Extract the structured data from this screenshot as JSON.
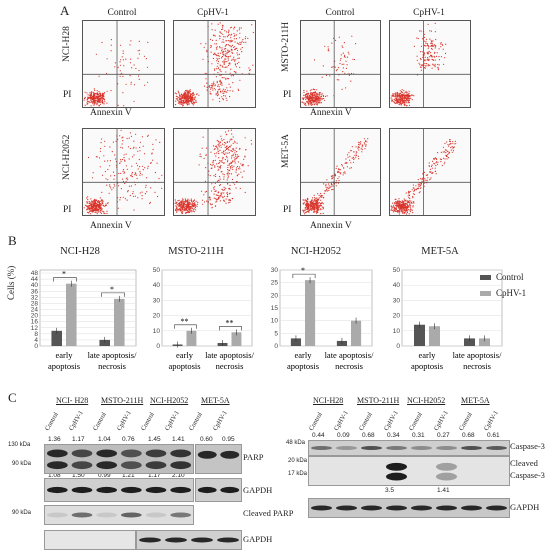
{
  "panels": {
    "a": "A",
    "b": "B",
    "c": "C"
  },
  "flow": {
    "col_titles": [
      "Control",
      "CpHV-1",
      "Control",
      "CpHV-1"
    ],
    "cell_lines": [
      "NCI-H28",
      "MSTO-211H",
      "NCI-H2052",
      "MET-5A"
    ],
    "y_axis": "PI",
    "x_axis": "Annexin V"
  },
  "legend": {
    "control": "Control",
    "cphv": "CpHV-1"
  },
  "colors": {
    "control": "#555555",
    "cphv": "#aaaaaa",
    "dots": "#d9342b"
  },
  "chart_data": [
    {
      "type": "bar",
      "title": "NCI-H28",
      "ylabel": "Cells (%)",
      "ylim": [
        0,
        50
      ],
      "yticks": [
        "0",
        "4",
        "8",
        "12",
        "16",
        "20",
        "24",
        "28",
        "32",
        "36",
        "40",
        "44",
        "48"
      ],
      "categories": [
        "early apoptosis",
        "late apoptosis/ necrosis"
      ],
      "series": [
        {
          "name": "Control",
          "values": [
            10,
            4
          ]
        },
        {
          "name": "CpHV-1",
          "values": [
            41,
            31
          ]
        }
      ],
      "annotations": [
        "*",
        "*"
      ]
    },
    {
      "type": "bar",
      "title": "MSTO-211H",
      "ylim": [
        0,
        50
      ],
      "yticks": [
        "0",
        "10",
        "20",
        "30",
        "40",
        "50"
      ],
      "categories": [
        "early apoptosis",
        "late apoptosis/ necrosis"
      ],
      "series": [
        {
          "name": "Control",
          "values": [
            1,
            2
          ]
        },
        {
          "name": "CpHV-1",
          "values": [
            10,
            9
          ]
        }
      ],
      "annotations": [
        "**",
        "**"
      ]
    },
    {
      "type": "bar",
      "title": "NCI-H2052",
      "ylim": [
        0,
        30
      ],
      "yticks": [
        "0",
        "5",
        "10",
        "15",
        "20",
        "25",
        "30"
      ],
      "categories": [
        "early apoptosis",
        "late apoptosis/ necrosis"
      ],
      "series": [
        {
          "name": "Control",
          "values": [
            3,
            2
          ]
        },
        {
          "name": "CpHV-1",
          "values": [
            26,
            10
          ]
        }
      ],
      "annotations": [
        "*",
        ""
      ]
    },
    {
      "type": "bar",
      "title": "MET-5A",
      "ylim": [
        0,
        50
      ],
      "yticks": [
        "0",
        "10",
        "20",
        "30",
        "40",
        "50"
      ],
      "categories": [
        "early apoptosis",
        "late apoptosis/ necrosis"
      ],
      "series": [
        {
          "name": "Control",
          "values": [
            14,
            5
          ]
        },
        {
          "name": "CpHV-1",
          "values": [
            13,
            5
          ]
        }
      ],
      "annotations": [
        "",
        ""
      ]
    }
  ],
  "blots": {
    "left": {
      "groups": [
        "NCI- H28",
        "MSTO-211H",
        "NCI-H2052",
        "MET-5A"
      ],
      "lanes": [
        "Control",
        "CpHV-1",
        "Control",
        "CpHV-1",
        "Control",
        "CpHV-1",
        "Control",
        "CpHV-1"
      ],
      "parp_top": [
        "1.36",
        "1.17",
        "1.04",
        "0.76",
        "1.45",
        "1.41",
        "0.60",
        "0.95"
      ],
      "parp_bottom": [
        "1.08",
        "1.50",
        "0.99",
        "1.21",
        "1.17",
        "2.10"
      ],
      "cleaved": [
        "1.59",
        "1.26",
        "1.19"
      ],
      "kda": [
        "130 kDa",
        "90 kDa",
        "90 kDa"
      ],
      "names": [
        "PARP",
        "GAPDH",
        "Cleaved PARP",
        "GAPDH"
      ]
    },
    "right": {
      "groups": [
        "NCI-H28",
        "MSTO-211H",
        "NCI-H2052",
        "MET-5A"
      ],
      "lanes": [
        "Control",
        "CpHV-1",
        "Control",
        "CpHV-1",
        "Control",
        "CpHV-1",
        "Control",
        "CpHV-1"
      ],
      "casp_top": [
        "0.44",
        "0.09",
        "0.68",
        "0.34",
        "0.31",
        "0.27",
        "0.68",
        "0.61"
      ],
      "cleaved_vals": [
        "3.5",
        "1.41"
      ],
      "kda": [
        "48 kDa",
        "20 kDa",
        "17 kDa"
      ],
      "names": [
        "Caspase-3",
        "Cleaved",
        "Caspase-3",
        "GAPDH"
      ]
    }
  }
}
